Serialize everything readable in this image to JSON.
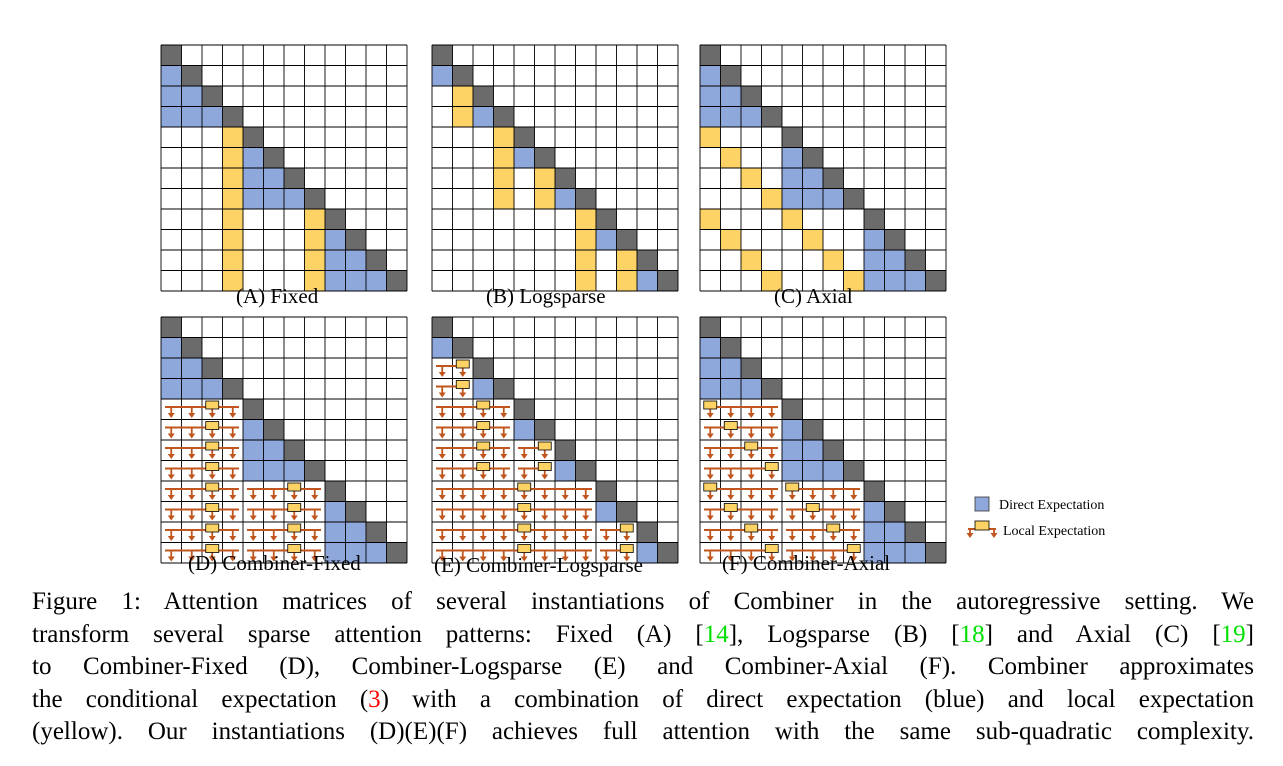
{
  "colors": {
    "diagonal": "#6b6b6b",
    "direct": "#8fa8db",
    "local": "#fcd364",
    "arrow": "#c0561e",
    "grid": "#000000",
    "ref_green": "#00e000",
    "ref_red": "#ff0000"
  },
  "panels": [
    {
      "id": "A",
      "label": "(A) Fixed",
      "grid_size": 12,
      "cells": {
        "diagonal": "i==j",
        "blue": "(0,1..3),(1..3,4..7),(2..3,8..11)",
        "yellow": "columns 3 and 7 below blocks"
      }
    },
    {
      "id": "B",
      "label": "(B) Logsparse",
      "grid_size": 12
    },
    {
      "id": "C",
      "label": "(C) Axial",
      "grid_size": 12
    },
    {
      "id": "D",
      "label": "(D) Combiner-Fixed",
      "grid_size": 12
    },
    {
      "id": "E",
      "label": "(E) Combiner-Logsparse",
      "grid_size": 12
    },
    {
      "id": "F",
      "label": "(F) Combiner-Axial",
      "grid_size": 12
    }
  ],
  "legend": {
    "direct": "Direct Expectation",
    "local": "Local Expectation"
  },
  "caption": {
    "line1": "Figure 1: Attention matrices of several instantiations of Combiner in the autoregressive setting. We",
    "line2a": "transform several sparse attention patterns: Fixed (A) [",
    "ref14": "14",
    "line2b": "], Logsparse (B) [",
    "ref18": "18",
    "line2c": "] and Axial (C) [",
    "ref19": "19",
    "line2d": "]",
    "line3": "to Combiner-Fixed (D), Combiner-Logsparse (E) and Combiner-Axial (F). Combiner approximates",
    "line4a": "the conditional expectation (",
    "ref3": "3",
    "line4b": ") with a combination of direct expectation (blue) and local expectation",
    "line5": "(yellow). Our instantiations (D)(E)(F) achieves full attention with the same sub-quadratic complexity."
  }
}
